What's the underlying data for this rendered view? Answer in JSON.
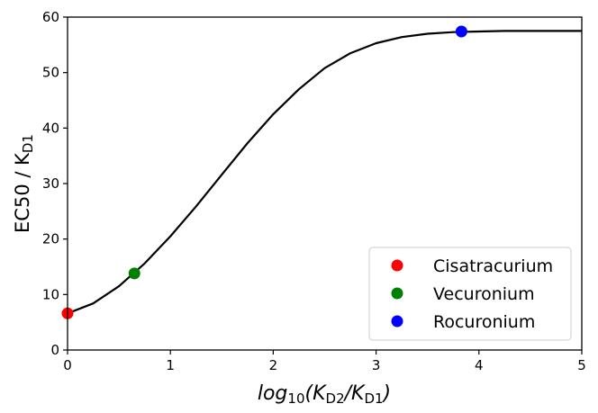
{
  "chart_data": {
    "type": "line",
    "xlabel": {
      "main": "log",
      "sub1": "10",
      "paren_open": "(K",
      "sub2": "D2",
      "slash": "/K",
      "sub3": "D1",
      "paren_close": ")"
    },
    "ylabel": {
      "main": "EC50 / K",
      "sub": "D1"
    },
    "xlim": [
      0,
      5
    ],
    "ylim": [
      0,
      60
    ],
    "xticks": [
      "0",
      "1",
      "2",
      "3",
      "4",
      "5"
    ],
    "yticks": [
      "0",
      "10",
      "20",
      "30",
      "40",
      "50",
      "60"
    ],
    "grid": false,
    "legend_position": "bottom-right",
    "curve": {
      "color": "#000000",
      "x": [
        0,
        0.25,
        0.5,
        0.75,
        1.0,
        1.25,
        1.5,
        1.75,
        2.0,
        2.25,
        2.5,
        2.75,
        3.0,
        3.25,
        3.5,
        3.75,
        4.0,
        4.25,
        4.5,
        4.75,
        5.0
      ],
      "y": [
        6.6,
        8.4,
        11.5,
        15.6,
        20.5,
        25.9,
        31.6,
        37.3,
        42.5,
        47.0,
        50.8,
        53.5,
        55.3,
        56.4,
        57.0,
        57.3,
        57.4,
        57.5,
        57.5,
        57.5,
        57.5
      ]
    },
    "series": [
      {
        "name": "Cisatracurium",
        "color": "#ff0000",
        "x": 0.0,
        "y": 6.6
      },
      {
        "name": "Vecuronium",
        "color": "#008000",
        "x": 0.65,
        "y": 13.8
      },
      {
        "name": "Rocuronium",
        "color": "#0000ff",
        "x": 3.83,
        "y": 57.4
      }
    ]
  }
}
